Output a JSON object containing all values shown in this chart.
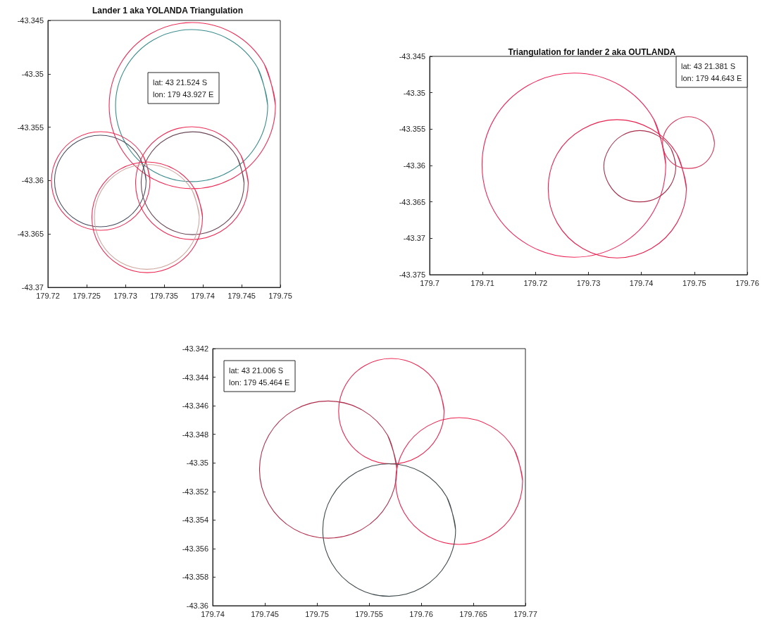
{
  "chart_data": [
    {
      "type": "line",
      "title": "Lander 1 aka YOLANDA Triangulation",
      "xlim": [
        179.72,
        179.75
      ],
      "ylim": [
        -43.37,
        -43.345
      ],
      "xticks": [
        179.72,
        179.725,
        179.73,
        179.735,
        179.74,
        179.745,
        179.75
      ],
      "yticks": [
        -43.37,
        -43.365,
        -43.36,
        -43.355,
        -43.35,
        -43.345
      ],
      "marker": "none",
      "annotations": [
        "lat: 43 21.524 S\nlon: 179 43.927 E"
      ],
      "series": [
        {
          "color": "#ee2a55",
          "x": [
            179.74937,
            179.74793,
            179.744,
            179.73864,
            179.73328,
            179.72935,
            179.72791,
            179.72935,
            179.73328,
            179.73864,
            179.744,
            179.74793,
            179.74937,
            179.74793
          ],
          "values": [
            -43.35298,
            -43.34909,
            -43.34624,
            -43.3452,
            -43.34624,
            -43.34909,
            -43.35298,
            -43.35687,
            -43.35972,
            -43.36076,
            -43.35972,
            -43.35687,
            -43.35298,
            -43.34909
          ]
        },
        {
          "color": "#3a8c8c",
          "x": [
            179.74837,
            179.74705,
            179.74346,
            179.73855,
            179.73364,
            179.73005,
            179.72873,
            179.73005,
            179.73364,
            179.73855,
            179.74346,
            179.74705,
            179.74837,
            179.74705
          ],
          "values": [
            -43.35298,
            -43.34942,
            -43.34681,
            -43.34586,
            -43.34681,
            -43.34942,
            -43.35298,
            -43.35654,
            -43.35915,
            -43.3601,
            -43.35915,
            -43.35654,
            -43.35298,
            -43.34942
          ]
        },
        {
          "color": "#ee2a55",
          "x": [
            179.73318,
            179.73233,
            179.73,
            179.72682,
            179.72364,
            179.72131,
            179.72046,
            179.72131,
            179.72364,
            179.72682,
            179.73,
            179.73233,
            179.73318,
            179.73233
          ],
          "values": [
            -43.36004,
            -43.35773,
            -43.35604,
            -43.35542,
            -43.35604,
            -43.35773,
            -43.36004,
            -43.36235,
            -43.36404,
            -43.36466,
            -43.36404,
            -43.36235,
            -43.36004,
            -43.35773
          ]
        },
        {
          "color": "#4a5060",
          "x": [
            179.73268,
            179.73189,
            179.72972,
            179.72677,
            179.72382,
            179.72165,
            179.72086,
            179.72165,
            179.72382,
            179.72677,
            179.72972,
            179.73189,
            179.73268,
            179.73189
          ],
          "values": [
            -43.36004,
            -43.3579,
            -43.35633,
            -43.35575,
            -43.35633,
            -43.3579,
            -43.36004,
            -43.36218,
            -43.36375,
            -43.36433,
            -43.36375,
            -43.36218,
            -43.36004,
            -43.3579
          ]
        },
        {
          "color": "#ee2a55",
          "x": [
            179.74586,
            179.74489,
            179.74223,
            179.73859,
            179.73495,
            179.73229,
            179.73132,
            179.73229,
            179.73495,
            179.73859,
            179.74223,
            179.74489,
            179.74586,
            179.74489
          ],
          "values": [
            -43.36024,
            -43.3576,
            -43.35567,
            -43.35496,
            -43.35567,
            -43.3576,
            -43.36024,
            -43.36288,
            -43.36481,
            -43.36552,
            -43.36481,
            -43.36288,
            -43.36024,
            -43.3576
          ]
        },
        {
          "color": "#6a4858",
          "x": [
            179.74532,
            179.74443,
            179.742,
            179.73868,
            179.73536,
            179.73293,
            179.73204,
            179.73293,
            179.73536,
            179.73868,
            179.742,
            179.74443,
            179.74532,
            179.74443
          ],
          "values": [
            -43.36024,
            -43.35783,
            -43.35607,
            -43.35543,
            -43.35607,
            -43.35783,
            -43.36024,
            -43.36265,
            -43.36441,
            -43.36506,
            -43.36441,
            -43.36265,
            -43.36024,
            -43.35783
          ]
        },
        {
          "color": "#ee2a55",
          "x": [
            179.73996,
            179.739,
            179.73639,
            179.73282,
            179.72925,
            179.72664,
            179.72568,
            179.72664,
            179.72925,
            179.73282,
            179.73639,
            179.739,
            179.73996,
            179.739
          ],
          "values": [
            -43.36344,
            -43.36085,
            -43.35896,
            -43.35826,
            -43.35896,
            -43.36085,
            -43.36344,
            -43.36603,
            -43.36792,
            -43.36862,
            -43.36792,
            -43.36603,
            -43.36344,
            -43.36085
          ]
        },
        {
          "color": "#cfa8a0",
          "x": [
            179.73954,
            179.73864,
            179.73616,
            179.73277,
            179.72938,
            179.7269,
            179.726,
            179.7269,
            179.72938,
            179.73277,
            179.73616,
            179.73864,
            179.73954,
            179.73864
          ],
          "values": [
            -43.3634,
            -43.36094,
            -43.35914,
            -43.35849,
            -43.35914,
            -43.36094,
            -43.3634,
            -43.36586,
            -43.36766,
            -43.36831,
            -43.36766,
            -43.36586,
            -43.3634,
            -43.36094
          ]
        }
      ]
    },
    {
      "type": "line",
      "title": "Triangulation for lander 2 aka OUTLANDA",
      "xlim": [
        179.7,
        179.76
      ],
      "ylim": [
        -43.375,
        -43.345
      ],
      "xticks": [
        179.7,
        179.71,
        179.72,
        179.73,
        179.74,
        179.75,
        179.76
      ],
      "yticks": [
        -43.375,
        -43.37,
        -43.365,
        -43.36,
        -43.355,
        -43.35,
        -43.345
      ],
      "marker": "none",
      "annotations": [
        "lat: 43 21.381 S\nlon: 179 44.643 E"
      ],
      "series": [
        {
          "color": "#f0245a",
          "x": [
            179.7446,
            179.7423,
            179.736,
            179.7273,
            179.7186,
            179.7122,
            179.7099,
            179.7122,
            179.7186,
            179.7273,
            179.736,
            179.7423,
            179.7446,
            179.7423
          ],
          "values": [
            -43.3599,
            -43.3536,
            -43.349,
            -43.3473,
            -43.349,
            -43.3536,
            -43.3599,
            -43.3663,
            -43.3709,
            -43.3726,
            -43.3709,
            -43.3663,
            -43.3599,
            -43.3536
          ]
        },
        {
          "color": "#e8204f",
          "x": [
            179.7485,
            179.7467,
            179.7419,
            179.7354,
            179.7289,
            179.7241,
            179.7224,
            179.7241,
            179.7289,
            179.7354,
            179.7419,
            179.7467,
            179.7485,
            179.7467
          ],
          "values": [
            -43.3632,
            -43.3584,
            -43.355,
            -43.3537,
            -43.355,
            -43.3584,
            -43.3632,
            -43.3679,
            -43.3714,
            -43.3727,
            -43.3714,
            -43.3679,
            -43.3632,
            -43.3584
          ]
        },
        {
          "color": "#a8304e",
          "x": [
            179.7465,
            179.7456,
            179.7431,
            179.7397,
            179.7363,
            179.7339,
            179.7329,
            179.7339,
            179.7363,
            179.7397,
            179.7431,
            179.7456,
            179.7465,
            179.7456
          ],
          "values": [
            -43.3601,
            -43.3577,
            -43.3559,
            -43.3552,
            -43.3559,
            -43.3577,
            -43.3601,
            -43.3626,
            -43.3644,
            -43.365,
            -43.3644,
            -43.3626,
            -43.3601,
            -43.3577
          ]
        },
        {
          "color": "#d8385e",
          "x": [
            179.7538,
            179.7531,
            179.7513,
            179.7489,
            179.7465,
            179.7447,
            179.744,
            179.7447,
            179.7465,
            179.7489,
            179.7513,
            179.7531,
            179.7538,
            179.7531
          ],
          "values": [
            -43.3569,
            -43.3551,
            -43.3538,
            -43.3533,
            -43.3538,
            -43.3551,
            -43.3569,
            -43.3587,
            -43.36,
            -43.3604,
            -43.36,
            -43.3587,
            -43.3569,
            -43.3551
          ]
        }
      ]
    },
    {
      "type": "line",
      "xlim": [
        179.74,
        179.77
      ],
      "ylim": [
        -43.36,
        -43.342
      ],
      "xticks": [
        179.74,
        179.745,
        179.75,
        179.755,
        179.76,
        179.765,
        179.77
      ],
      "yticks": [
        -43.36,
        -43.358,
        -43.356,
        -43.354,
        -43.352,
        -43.35,
        -43.348,
        -43.346,
        -43.344,
        -43.342
      ],
      "marker": "none",
      "annotations": [
        "lat: 43 21.006 S\nlon: 179 45.464 E"
      ],
      "series": [
        {
          "color": "#ec2450",
          "x": [
            179.7622,
            179.76153,
            179.75967,
            179.75714,
            179.75461,
            179.75276,
            179.75208,
            179.75276,
            179.75461,
            179.75714,
            179.75967,
            179.76153,
            179.7622,
            179.76153
          ],
          "values": [
            -43.34638,
            -43.34453,
            -43.34318,
            -43.34269,
            -43.34318,
            -43.34453,
            -43.34638,
            -43.34823,
            -43.34958,
            -43.35007,
            -43.34958,
            -43.34823,
            -43.34638,
            -43.34453
          ]
        },
        {
          "color": "#b02a4a",
          "x": [
            179.75767,
            179.75678,
            179.75437,
            179.75108,
            179.74779,
            179.74538,
            179.74449,
            179.74538,
            179.74779,
            179.75108,
            179.75437,
            179.75678,
            179.75767,
            179.75678
          ],
          "values": [
            -43.35047,
            -43.34807,
            -43.34631,
            -43.34567,
            -43.34631,
            -43.34807,
            -43.35047,
            -43.35287,
            -43.35463,
            -43.35527,
            -43.35463,
            -43.35287,
            -43.35047,
            -43.34807
          ]
        },
        {
          "color": "#ee2250",
          "x": [
            179.76973,
            179.76892,
            179.76669,
            179.76364,
            179.76059,
            179.75837,
            179.75755,
            179.75837,
            179.76059,
            179.76364,
            179.76669,
            179.76892,
            179.76973,
            179.76892
          ],
          "values": [
            -43.35127,
            -43.34905,
            -43.34743,
            -43.34683,
            -43.34743,
            -43.34905,
            -43.35127,
            -43.35349,
            -43.35511,
            -43.35571,
            -43.35511,
            -43.35349,
            -43.35127,
            -43.34905
          ]
        },
        {
          "color": "#404a4c",
          "x": [
            179.7633,
            179.76245,
            179.76012,
            179.75693,
            179.75374,
            179.75141,
            179.75056,
            179.75141,
            179.75374,
            179.75693,
            179.76012,
            179.76245,
            179.7633,
            179.76245
          ],
          "values": [
            -43.3547,
            -43.35238,
            -43.35068,
            -43.35006,
            -43.35068,
            -43.35238,
            -43.3547,
            -43.35702,
            -43.35872,
            -43.35934,
            -43.35872,
            -43.35702,
            -43.3547,
            -43.35238
          ]
        }
      ]
    }
  ]
}
